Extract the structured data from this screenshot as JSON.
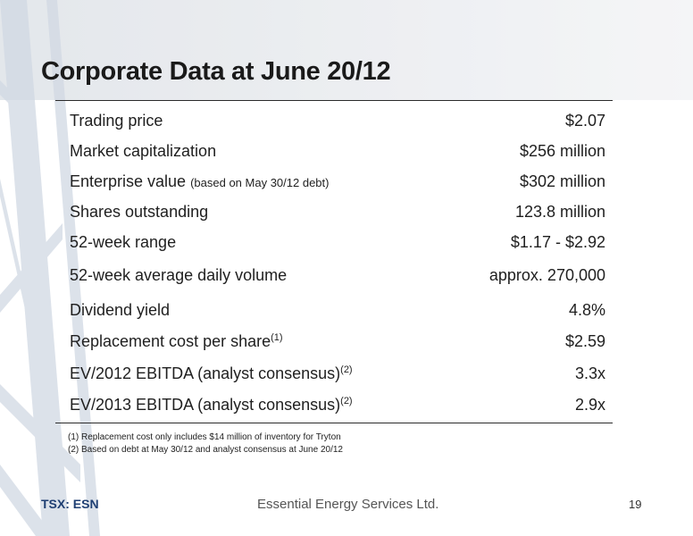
{
  "title": "Corporate Data at June 20/12",
  "rows": [
    {
      "label": "Trading price",
      "note": "",
      "sup": "",
      "value": "$2.07"
    },
    {
      "label": "Market capitalization",
      "note": "",
      "sup": "",
      "value": "$256 million"
    },
    {
      "label": "Enterprise value",
      "note": "(based on May 30/12 debt)",
      "sup": "",
      "value": "$302 million"
    },
    {
      "label": "Shares outstanding",
      "note": "",
      "sup": "",
      "value": "123.8 million"
    },
    {
      "label": "52-week range",
      "note": "",
      "sup": "",
      "value": "$1.17 - $2.92"
    },
    {
      "label": "52-week average daily volume",
      "note": "",
      "sup": "",
      "value": "approx. 270,000"
    },
    {
      "label": "Dividend yield",
      "note": "",
      "sup": "",
      "value": "4.8%"
    },
    {
      "label": "Replacement cost per share",
      "note": "",
      "sup": "(1)",
      "value": "$2.59"
    },
    {
      "label": "EV/2012 EBITDA (analyst consensus)",
      "note": "",
      "sup": "(2)",
      "value": "3.3x"
    },
    {
      "label": "EV/2013 EBITDA (analyst consensus)",
      "note": "",
      "sup": "(2)",
      "value": "2.9x"
    }
  ],
  "footnotes": [
    "(1) Replacement cost only includes $14 million of inventory for Tryton",
    "(2) Based on debt at May 30/12 and analyst consensus at June 20/12"
  ],
  "footer": {
    "ticker": "TSX: ESN",
    "company": "Essential Energy Services Ltd.",
    "page_number": "19"
  },
  "colors": {
    "ticker": "#1f3f73",
    "background_band": "#e3e6ea",
    "background_lattice": "#c9d2df"
  }
}
